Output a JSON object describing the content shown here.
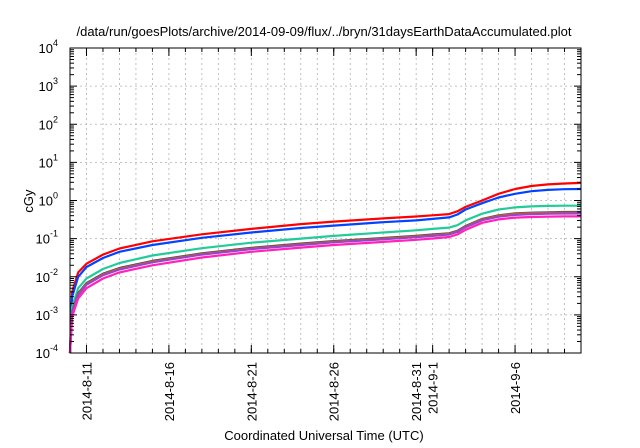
{
  "chart_data": {
    "type": "line",
    "title": "/data/run/goesPlots/archive/2014-09-09/flux/../bryn/31daysEarthDataAccumulated.plot",
    "xlabel": "Coordinated Universal Time (UTC)",
    "ylabel": "cGy",
    "yscale": "log",
    "ylim": [
      0.0001,
      10000
    ],
    "xlim": [
      "2014-08-10",
      "2014-09-10"
    ],
    "grid": true,
    "y_ticks": [
      {
        "value": 0.0001,
        "base": "10",
        "exp": "-4"
      },
      {
        "value": 0.001,
        "base": "10",
        "exp": "-3"
      },
      {
        "value": 0.01,
        "base": "10",
        "exp": "-2"
      },
      {
        "value": 0.1,
        "base": "10",
        "exp": "-1"
      },
      {
        "value": 1,
        "base": "10",
        "exp": "0"
      },
      {
        "value": 10,
        "base": "10",
        "exp": "1"
      },
      {
        "value": 100,
        "base": "10",
        "exp": "2"
      },
      {
        "value": 1000,
        "base": "10",
        "exp": "3"
      },
      {
        "value": 10000,
        "base": "10",
        "exp": "4"
      }
    ],
    "x_ticks": [
      {
        "value": "2014-08-11",
        "label": "2014-8-11"
      },
      {
        "value": "2014-08-16",
        "label": "2014-8-16"
      },
      {
        "value": "2014-08-21",
        "label": "2014-8-21"
      },
      {
        "value": "2014-08-26",
        "label": "2014-8-26"
      },
      {
        "value": "2014-08-31",
        "label": "2014-8-31"
      },
      {
        "value": "2014-09-01",
        "label": "2014-9-1"
      },
      {
        "value": "2014-09-06",
        "label": "2014-9-6"
      }
    ],
    "series": [
      {
        "color": "#ff0000",
        "x": [
          "2014-08-10",
          "2014-08-10T03:00",
          "2014-08-10T12:00",
          "2014-08-11",
          "2014-08-12",
          "2014-08-13",
          "2014-08-15",
          "2014-08-18",
          "2014-08-21",
          "2014-08-24",
          "2014-08-26",
          "2014-08-29",
          "2014-08-31",
          "2014-09-01",
          "2014-09-02",
          "2014-09-02T12:00",
          "2014-09-03",
          "2014-09-04",
          "2014-09-05",
          "2014-09-06",
          "2014-09-07",
          "2014-09-08",
          "2014-09-09",
          "2014-09-10"
        ],
        "y": [
          0.0001,
          0.004,
          0.013,
          0.022,
          0.038,
          0.055,
          0.085,
          0.13,
          0.18,
          0.24,
          0.28,
          0.34,
          0.38,
          0.41,
          0.44,
          0.52,
          0.68,
          1.0,
          1.5,
          2.0,
          2.4,
          2.65,
          2.8,
          2.9
        ]
      },
      {
        "color": "#0044ff",
        "x": [
          "2014-08-10",
          "2014-08-10T03:00",
          "2014-08-10T12:00",
          "2014-08-11",
          "2014-08-12",
          "2014-08-13",
          "2014-08-15",
          "2014-08-18",
          "2014-08-21",
          "2014-08-24",
          "2014-08-26",
          "2014-08-29",
          "2014-08-31",
          "2014-09-01",
          "2014-09-02",
          "2014-09-02T12:00",
          "2014-09-03",
          "2014-09-04",
          "2014-09-05",
          "2014-09-06",
          "2014-09-07",
          "2014-09-08",
          "2014-09-09",
          "2014-09-10"
        ],
        "y": [
          0.0001,
          0.003,
          0.01,
          0.018,
          0.031,
          0.045,
          0.068,
          0.105,
          0.145,
          0.19,
          0.22,
          0.27,
          0.3,
          0.33,
          0.36,
          0.43,
          0.58,
          0.85,
          1.2,
          1.5,
          1.75,
          1.9,
          1.98,
          2.0
        ]
      },
      {
        "color": "#22cc99",
        "x": [
          "2014-08-10",
          "2014-08-10T03:00",
          "2014-08-10T12:00",
          "2014-08-11",
          "2014-08-12",
          "2014-08-13",
          "2014-08-15",
          "2014-08-18",
          "2014-08-21",
          "2014-08-24",
          "2014-08-26",
          "2014-08-29",
          "2014-08-31",
          "2014-09-01",
          "2014-09-02",
          "2014-09-02T12:00",
          "2014-09-03",
          "2014-09-04",
          "2014-09-05",
          "2014-09-06",
          "2014-09-07",
          "2014-09-08",
          "2014-09-09",
          "2014-09-10"
        ],
        "y": [
          0.0001,
          0.0016,
          0.005,
          0.009,
          0.016,
          0.023,
          0.036,
          0.056,
          0.078,
          0.1,
          0.118,
          0.145,
          0.165,
          0.18,
          0.195,
          0.225,
          0.3,
          0.45,
          0.58,
          0.66,
          0.7,
          0.72,
          0.73,
          0.73
        ]
      },
      {
        "color": "#444466",
        "x": [
          "2014-08-10",
          "2014-08-10T03:00",
          "2014-08-10T12:00",
          "2014-08-11",
          "2014-08-12",
          "2014-08-13",
          "2014-08-15",
          "2014-08-18",
          "2014-08-21",
          "2014-08-24",
          "2014-08-26",
          "2014-08-29",
          "2014-08-31",
          "2014-09-01",
          "2014-09-02",
          "2014-09-02T12:00",
          "2014-09-03",
          "2014-09-04",
          "2014-09-05",
          "2014-09-06",
          "2014-09-07",
          "2014-09-08",
          "2014-09-09",
          "2014-09-10"
        ],
        "y": [
          0.0001,
          0.0012,
          0.0037,
          0.0068,
          0.012,
          0.017,
          0.026,
          0.041,
          0.057,
          0.074,
          0.086,
          0.104,
          0.118,
          0.128,
          0.138,
          0.16,
          0.215,
          0.33,
          0.41,
          0.46,
          0.48,
          0.49,
          0.5,
          0.5
        ]
      },
      {
        "color": "#cc6600",
        "x": [
          "2014-08-10",
          "2014-08-10T03:00",
          "2014-08-10T12:00",
          "2014-08-11",
          "2014-08-12",
          "2014-08-13",
          "2014-08-15",
          "2014-08-18",
          "2014-08-21",
          "2014-08-24",
          "2014-08-26",
          "2014-08-29",
          "2014-08-31",
          "2014-09-01",
          "2014-09-02",
          "2014-09-02T12:00",
          "2014-09-03",
          "2014-09-04",
          "2014-09-05",
          "2014-09-06",
          "2014-09-07",
          "2014-09-08",
          "2014-09-09",
          "2014-09-10"
        ],
        "y": [
          0.0001,
          0.00115,
          0.0035,
          0.0065,
          0.0115,
          0.0163,
          0.025,
          0.0395,
          0.055,
          0.071,
          0.083,
          0.1,
          0.114,
          0.123,
          0.133,
          0.155,
          0.207,
          0.32,
          0.395,
          0.445,
          0.465,
          0.475,
          0.48,
          0.48
        ]
      },
      {
        "color": "#9944cc",
        "x": [
          "2014-08-10",
          "2014-08-10T03:00",
          "2014-08-10T12:00",
          "2014-08-11",
          "2014-08-12",
          "2014-08-13",
          "2014-08-15",
          "2014-08-18",
          "2014-08-21",
          "2014-08-24",
          "2014-08-26",
          "2014-08-29",
          "2014-08-31",
          "2014-09-01",
          "2014-09-02",
          "2014-09-02T12:00",
          "2014-09-03",
          "2014-09-04",
          "2014-09-05",
          "2014-09-06",
          "2014-09-07",
          "2014-09-08",
          "2014-09-09",
          "2014-09-10"
        ],
        "y": [
          0.0001,
          0.0011,
          0.0033,
          0.0062,
          0.011,
          0.0155,
          0.024,
          0.038,
          0.053,
          0.068,
          0.08,
          0.096,
          0.109,
          0.118,
          0.128,
          0.149,
          0.2,
          0.305,
          0.375,
          0.42,
          0.44,
          0.45,
          0.455,
          0.455
        ]
      },
      {
        "color": "#ff22bb",
        "x": [
          "2014-08-10",
          "2014-08-10T03:00",
          "2014-08-10T12:00",
          "2014-08-11",
          "2014-08-12",
          "2014-08-13",
          "2014-08-15",
          "2014-08-18",
          "2014-08-21",
          "2014-08-24",
          "2014-08-26",
          "2014-08-29",
          "2014-08-31",
          "2014-09-01",
          "2014-09-02",
          "2014-09-02T12:00",
          "2014-09-03",
          "2014-09-04",
          "2014-09-05",
          "2014-09-06",
          "2014-09-07",
          "2014-09-08",
          "2014-09-09",
          "2014-09-10"
        ],
        "y": [
          0.0001,
          0.0009,
          0.0027,
          0.005,
          0.009,
          0.013,
          0.02,
          0.032,
          0.045,
          0.058,
          0.068,
          0.082,
          0.093,
          0.101,
          0.11,
          0.128,
          0.17,
          0.26,
          0.32,
          0.355,
          0.37,
          0.378,
          0.382,
          0.382
        ]
      }
    ]
  }
}
